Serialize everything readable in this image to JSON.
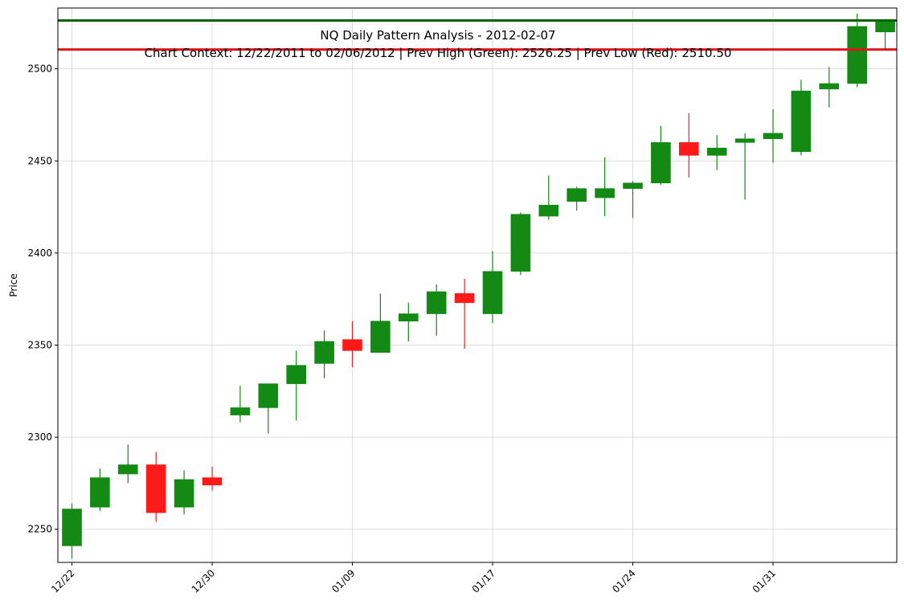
{
  "chart_data": {
    "type": "candlestick",
    "title": "NQ Daily Pattern Analysis - 2012-02-07",
    "subtitle": "Chart Context: 12/22/2011 to 02/06/2012 | Prev High (Green): 2526.25 | Prev Low (Red): 2510.50",
    "ylabel": "Price",
    "ylim": [
      2232,
      2533
    ],
    "yticks": [
      2250,
      2300,
      2350,
      2400,
      2450,
      2500
    ],
    "grid": true,
    "up_color": "#138a13",
    "down_color": "#ff1a1a",
    "xtick_labels": [
      {
        "index": 0,
        "label": "12/22"
      },
      {
        "index": 5,
        "label": "12/30"
      },
      {
        "index": 10,
        "label": "01/09"
      },
      {
        "index": 15,
        "label": "01/17"
      },
      {
        "index": 20,
        "label": "01/24"
      },
      {
        "index": 25,
        "label": "01/31"
      }
    ],
    "reference_lines": [
      {
        "name": "Prev High",
        "value": 2526.25,
        "color": "#006400"
      },
      {
        "name": "Prev Low",
        "value": 2510.5,
        "color": "#e0141a"
      }
    ],
    "candles": [
      {
        "o": 2241,
        "h": 2264,
        "l": 2234,
        "c": 2261
      },
      {
        "o": 2262,
        "h": 2283,
        "l": 2260,
        "c": 2278
      },
      {
        "o": 2280,
        "h": 2296,
        "l": 2275,
        "c": 2285
      },
      {
        "o": 2285,
        "h": 2292,
        "l": 2254,
        "c": 2259
      },
      {
        "o": 2262,
        "h": 2282,
        "l": 2258,
        "c": 2277
      },
      {
        "o": 2278,
        "h": 2284,
        "l": 2271,
        "c": 2274
      },
      {
        "o": 2312,
        "h": 2328,
        "l": 2308,
        "c": 2316
      },
      {
        "o": 2316,
        "h": 2329,
        "l": 2302,
        "c": 2329
      },
      {
        "o": 2329,
        "h": 2347,
        "l": 2309,
        "c": 2339
      },
      {
        "o": 2340,
        "h": 2358,
        "l": 2332,
        "c": 2352
      },
      {
        "o": 2353,
        "h": 2363,
        "l": 2338,
        "c": 2347
      },
      {
        "o": 2346,
        "h": 2378,
        "l": 2346,
        "c": 2363
      },
      {
        "o": 2363,
        "h": 2373,
        "l": 2352,
        "c": 2367
      },
      {
        "o": 2367,
        "h": 2383,
        "l": 2355,
        "c": 2379
      },
      {
        "o": 2378,
        "h": 2386,
        "l": 2348,
        "c": 2373
      },
      {
        "o": 2367,
        "h": 2401,
        "l": 2362,
        "c": 2390
      },
      {
        "o": 2390,
        "h": 2422,
        "l": 2388,
        "c": 2421
      },
      {
        "o": 2420,
        "h": 2442,
        "l": 2418,
        "c": 2426
      },
      {
        "o": 2428,
        "h": 2436,
        "l": 2423,
        "c": 2435
      },
      {
        "o": 2430,
        "h": 2452,
        "l": 2420,
        "c": 2435
      },
      {
        "o": 2435,
        "h": 2439,
        "l": 2419,
        "c": 2438
      },
      {
        "o": 2438,
        "h": 2469,
        "l": 2437,
        "c": 2460
      },
      {
        "o": 2460,
        "h": 2476,
        "l": 2441,
        "c": 2453
      },
      {
        "o": 2453,
        "h": 2464,
        "l": 2445,
        "c": 2457
      },
      {
        "o": 2460,
        "h": 2465,
        "l": 2429,
        "c": 2462
      },
      {
        "o": 2462,
        "h": 2478,
        "l": 2449,
        "c": 2465
      },
      {
        "o": 2455,
        "h": 2494,
        "l": 2453,
        "c": 2488
      },
      {
        "o": 2489,
        "h": 2501,
        "l": 2479,
        "c": 2492
      },
      {
        "o": 2492,
        "h": 2530,
        "l": 2490,
        "c": 2523
      },
      {
        "o": 2520,
        "h": 2527,
        "l": 2511,
        "c": 2526
      }
    ]
  }
}
